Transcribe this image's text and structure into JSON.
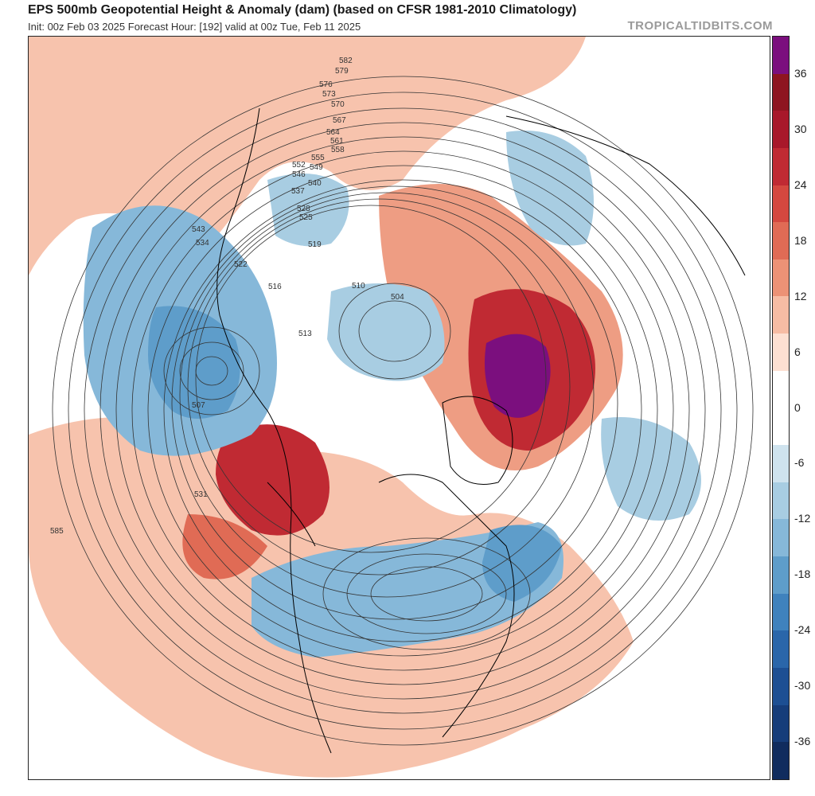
{
  "header": {
    "title": "EPS 500mb Geopotential Height & Anomaly (dam) (based on CFSR 1981-2010 Climatology)",
    "subtitle": "Init: 00z Feb 03 2025   Forecast Hour: [192]   valid at 00z Tue, Feb 11 2025",
    "brand": "TROPICALTIDBITS.COM"
  },
  "colorbar": {
    "ticks": [
      "36",
      "30",
      "24",
      "18",
      "12",
      "6",
      "0",
      "-6",
      "-12",
      "-18",
      "-24",
      "-30",
      "-36"
    ],
    "colors": [
      "#7b0f7e",
      "#8e1520",
      "#a8182a",
      "#c02a33",
      "#d4483f",
      "#e06b55",
      "#ec9276",
      "#f6bca4",
      "#fde0d2",
      "#ffffff",
      "#ffffff",
      "#cfe3ee",
      "#a8cde2",
      "#86b8d9",
      "#5e9dca",
      "#3f82bd",
      "#2a66aa",
      "#1d4f93",
      "#163d7a",
      "#102c5e"
    ]
  },
  "map": {
    "contour_labels": [
      "582",
      "579",
      "576",
      "573",
      "570",
      "567",
      "564",
      "561",
      "558",
      "555",
      "552",
      "549",
      "546",
      "543",
      "540",
      "537",
      "534",
      "531",
      "528",
      "525",
      "522",
      "519",
      "516",
      "513",
      "510",
      "507",
      "504",
      "585"
    ],
    "anomaly_colors": {
      "strong_positive": "#7b0f7e",
      "positive": "#c02a33",
      "weak_positive": "#f6bca4",
      "weak_negative": "#a8cde2",
      "negative": "#5e9dca"
    }
  }
}
